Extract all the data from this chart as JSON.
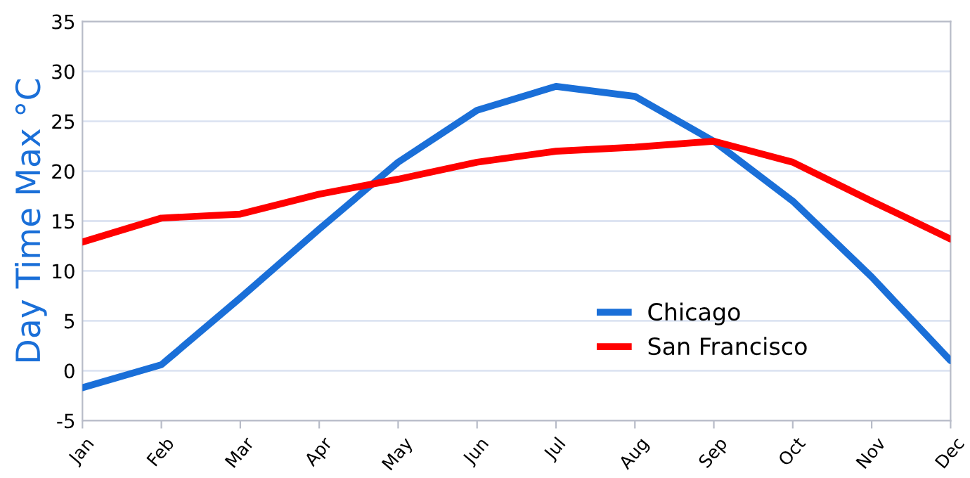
{
  "chart_data": {
    "type": "line",
    "ylabel": "Day Time Max °C",
    "categories": [
      "Jan",
      "Feb",
      "Mar",
      "Apr",
      "May",
      "Jun",
      "Jul",
      "Aug",
      "Sep",
      "Oct",
      "Nov",
      "Dec"
    ],
    "series": [
      {
        "name": "Chicago",
        "color": "#1a6fd8",
        "values": [
          -1.7,
          0.6,
          7.3,
          14.2,
          20.9,
          26.1,
          28.5,
          27.5,
          23,
          17,
          9.4,
          1
        ]
      },
      {
        "name": "San Francisco",
        "color": "#ff0000",
        "values": [
          12.9,
          15.3,
          15.7,
          17.7,
          19.2,
          20.9,
          22,
          22.4,
          23,
          20.9,
          17,
          13.2
        ]
      }
    ],
    "ylim": [
      -5,
      35
    ],
    "yticks": [
      -5,
      0,
      5,
      10,
      15,
      20,
      25,
      30,
      35
    ],
    "grid": "y",
    "legend": "bottom right",
    "line_style": "solid",
    "marker": "none"
  }
}
